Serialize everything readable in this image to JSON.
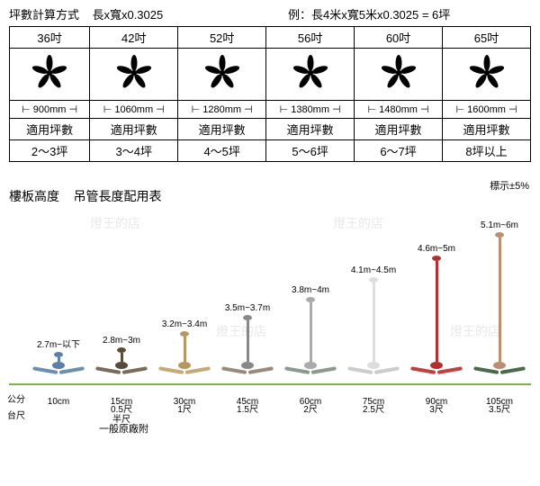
{
  "header": {
    "formula_label": "坪數計算方式",
    "formula": "長x寬x0.3025",
    "example_label": "例：",
    "example": "長4米x寬5米x0.3025 = 6坪"
  },
  "table": {
    "sizes": [
      "36吋",
      "42吋",
      "52吋",
      "56吋",
      "60吋",
      "65吋"
    ],
    "mm": [
      "900mm",
      "1060mm",
      "1280mm",
      "1380mm",
      "1480mm",
      "1600mm"
    ],
    "row_label": "適用坪數",
    "pings": [
      "2～3坪",
      "3～4坪",
      "4～5坪",
      "5～6坪",
      "6～7坪",
      "8坪以上"
    ]
  },
  "chart": {
    "title_a": "樓板高度",
    "title_b": "吊管長度配用表",
    "tolerance": "標示±5%",
    "axis_cm": "公分",
    "axis_chi": "台尺",
    "footer": "一般原廠附",
    "watermark": "燈王的店",
    "baseline_color": "#7cb342",
    "items": [
      {
        "height_label": "2.7m~以下",
        "rod_h": 5,
        "hub_color": "#5b7fa6",
        "blade_color": "#6b8fb0",
        "cm": "10cm",
        "chi": " "
      },
      {
        "height_label": "2.8m~3m",
        "rod_h": 10,
        "hub_color": "#5a4a3a",
        "blade_color": "#7a6a5a",
        "cm": "15cm",
        "chi": "0.5尺\n半尺"
      },
      {
        "height_label": "3.2m~3.4m",
        "rod_h": 28,
        "hub_color": "#b89660",
        "blade_color": "#c9a878",
        "cm": "30cm",
        "chi": "1尺"
      },
      {
        "height_label": "3.5m~3.7m",
        "rod_h": 46,
        "hub_color": "#888",
        "blade_color": "#9a8a7a",
        "cm": "45cm",
        "chi": "1.5尺"
      },
      {
        "height_label": "3.8m~4m",
        "rod_h": 66,
        "hub_color": "#aaa",
        "blade_color": "#8a9a8a",
        "cm": "60cm",
        "chi": "2尺"
      },
      {
        "height_label": "4.1m~4.5m",
        "rod_h": 88,
        "hub_color": "#ddd",
        "blade_color": "#ccc",
        "cm": "75cm",
        "chi": "2.5尺"
      },
      {
        "height_label": "4.6m~5m",
        "rod_h": 112,
        "hub_color": "#b03030",
        "blade_color": "#c04040",
        "cm": "90cm",
        "chi": "3尺"
      },
      {
        "height_label": "5.1m~6m",
        "rod_h": 138,
        "hub_color": "#b89070",
        "blade_color": "#4a6a4a",
        "cm": "105cm",
        "chi": "3.5尺"
      }
    ]
  }
}
